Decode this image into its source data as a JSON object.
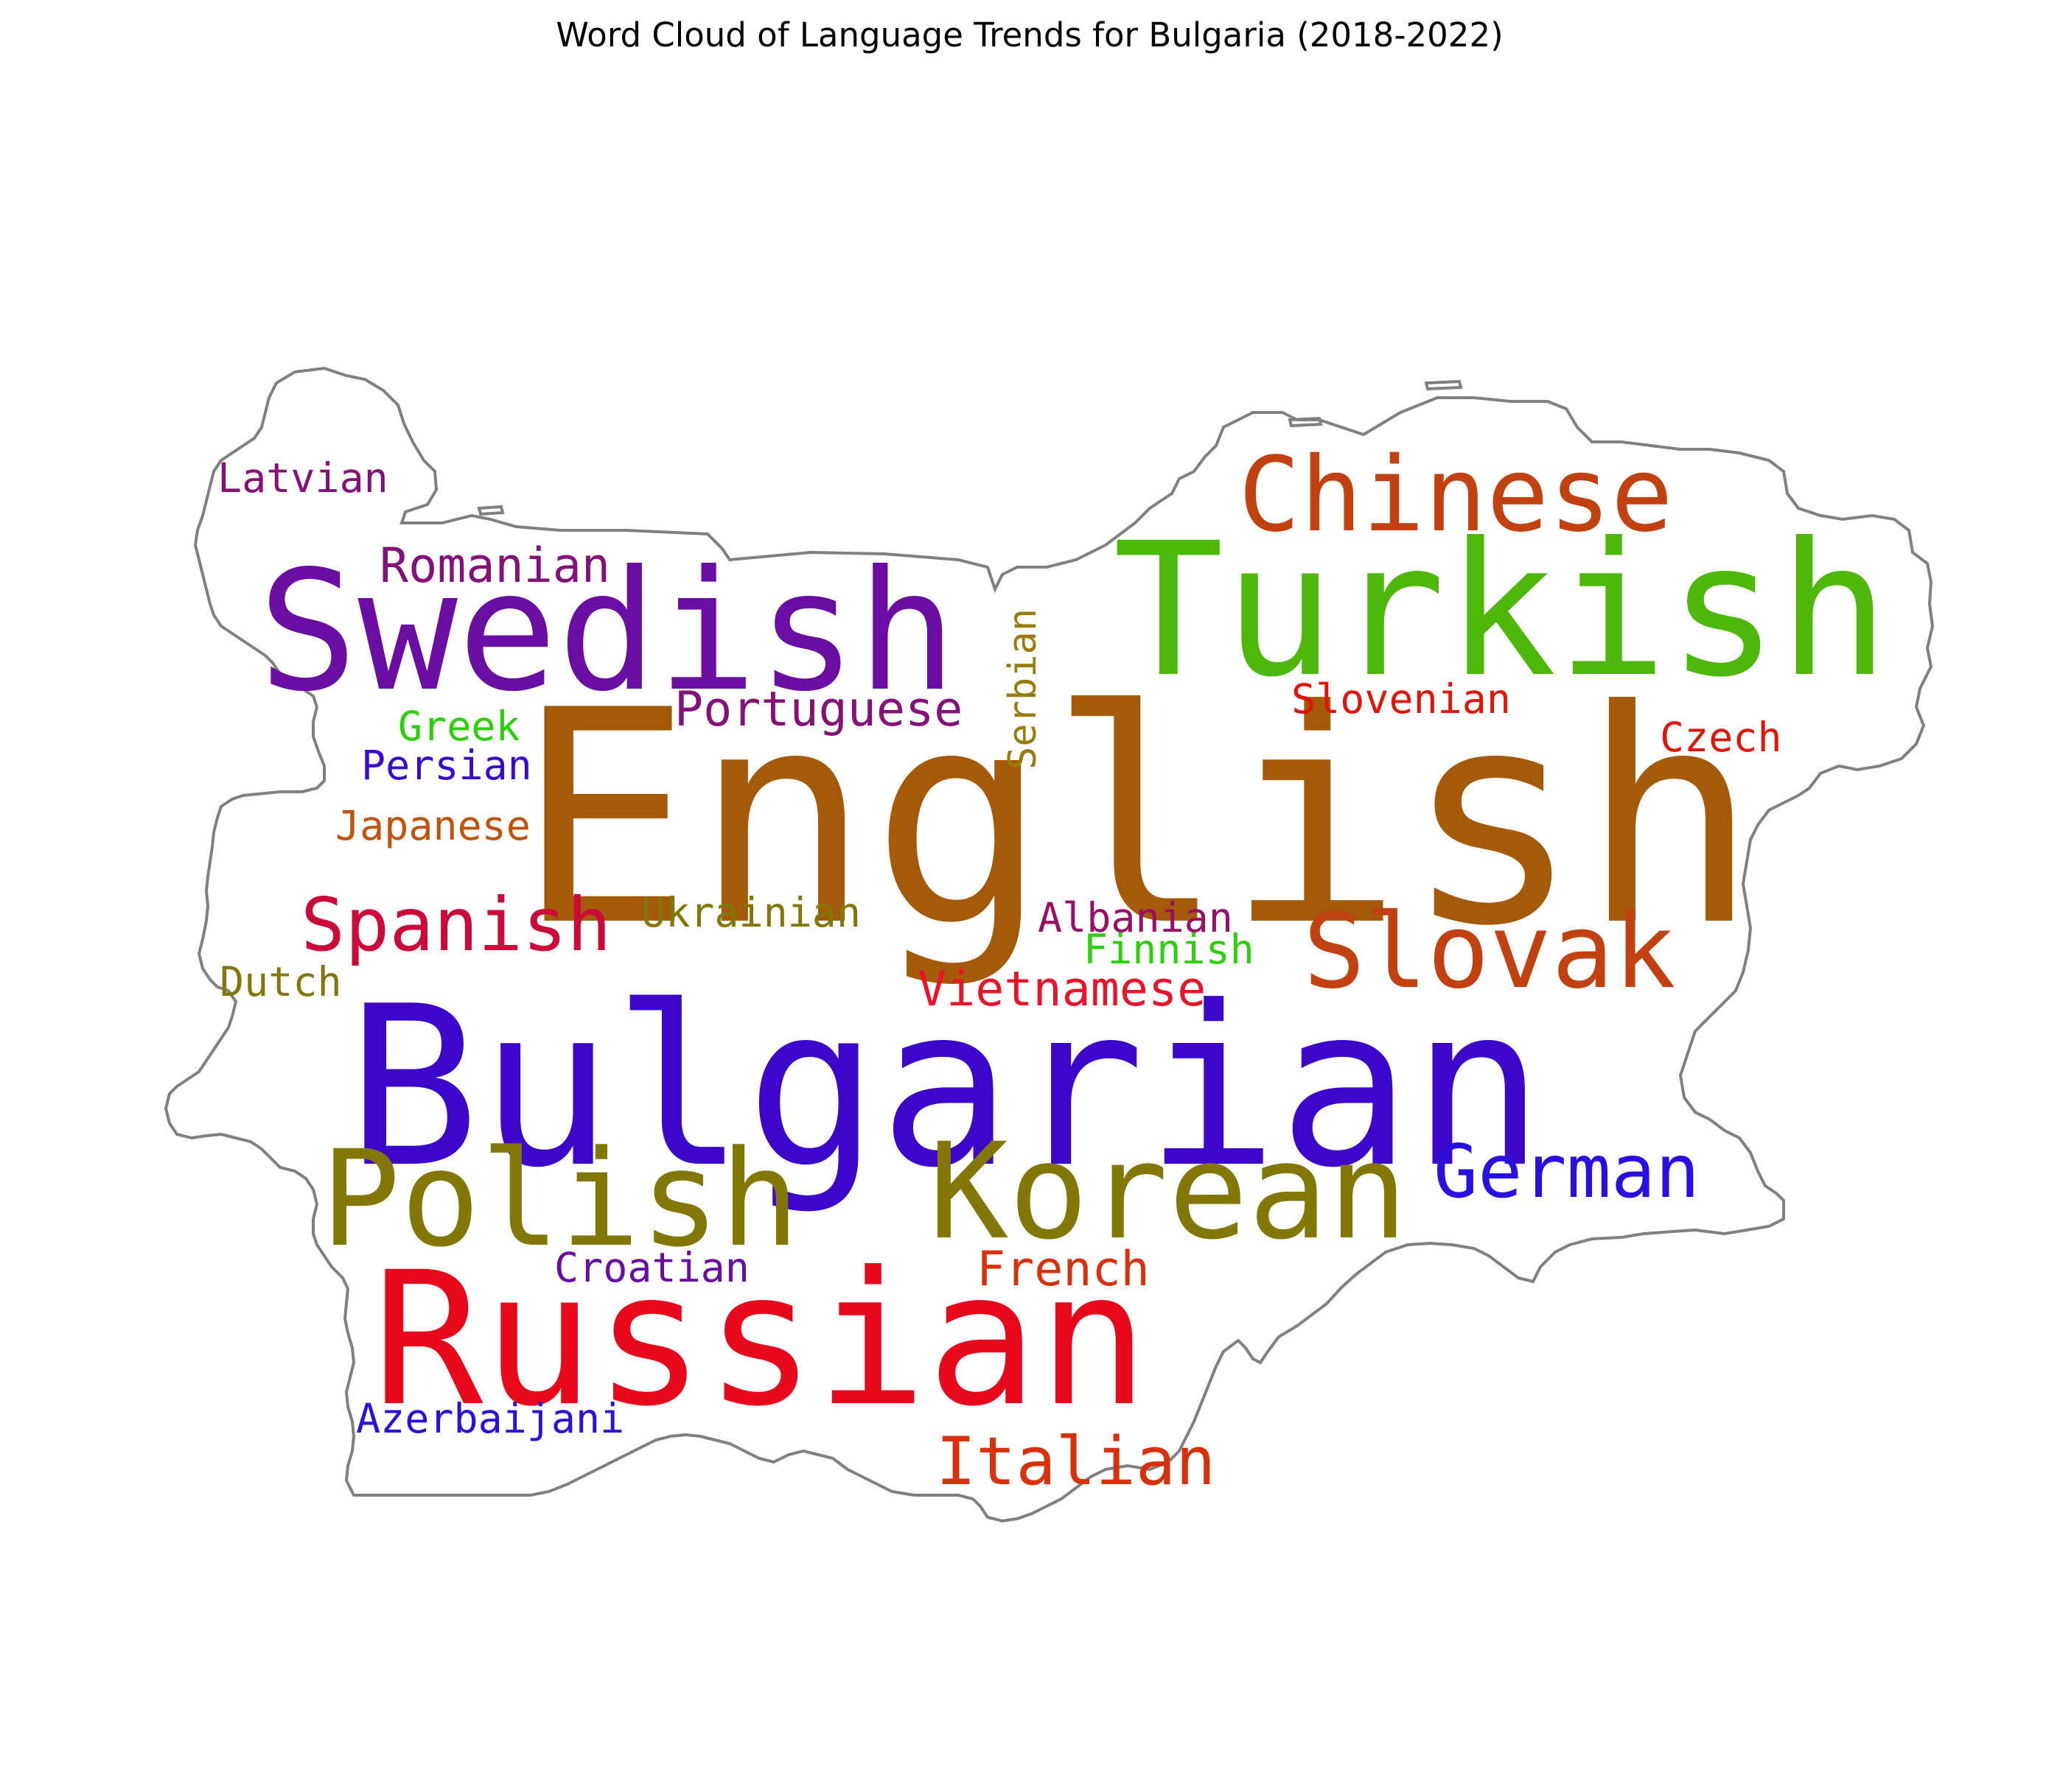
{
  "title": "Word Cloud of Language Trends for Bulgaria (2018-2022)",
  "outline_color": "#808080",
  "words": [
    {
      "text": "English",
      "color": "#a55a0a"
    },
    {
      "text": "Bulgarian",
      "color": "#3d07cb"
    },
    {
      "text": "Turkish",
      "color": "#4db80a"
    },
    {
      "text": "Russian",
      "color": "#e8081c"
    },
    {
      "text": "Swedish",
      "color": "#6a0ea3"
    },
    {
      "text": "Polish",
      "color": "#837707"
    },
    {
      "text": "Korean",
      "color": "#837707"
    },
    {
      "text": "Chinese",
      "color": "#c14111"
    },
    {
      "text": "Slovak",
      "color": "#c14111"
    },
    {
      "text": "German",
      "color": "#2a10e0"
    },
    {
      "text": "Spanish",
      "color": "#cc0a39"
    },
    {
      "text": "Italian",
      "color": "#d8300a"
    },
    {
      "text": "Romanian",
      "color": "#85107a"
    },
    {
      "text": "Portuguese",
      "color": "#85107a"
    },
    {
      "text": "Serbian",
      "color": "#987c0a"
    },
    {
      "text": "Slovenian",
      "color": "#e0160a"
    },
    {
      "text": "Czech",
      "color": "#e0160a"
    },
    {
      "text": "Latvian",
      "color": "#85107a"
    },
    {
      "text": "Greek",
      "color": "#2bd00a"
    },
    {
      "text": "Persian",
      "color": "#3a0ad0"
    },
    {
      "text": "Japanese",
      "color": "#c1540a"
    },
    {
      "text": "Ukrainian",
      "color": "#837707"
    },
    {
      "text": "Albanian",
      "color": "#990f66"
    },
    {
      "text": "Finnish",
      "color": "#2bd00a"
    },
    {
      "text": "Vietnamese",
      "color": "#e8142a"
    },
    {
      "text": "Dutch",
      "color": "#837707"
    },
    {
      "text": "Croatian",
      "color": "#6a0ea3"
    },
    {
      "text": "French",
      "color": "#d8300a"
    },
    {
      "text": "Azerbaijani",
      "color": "#2a10e0"
    }
  ]
}
